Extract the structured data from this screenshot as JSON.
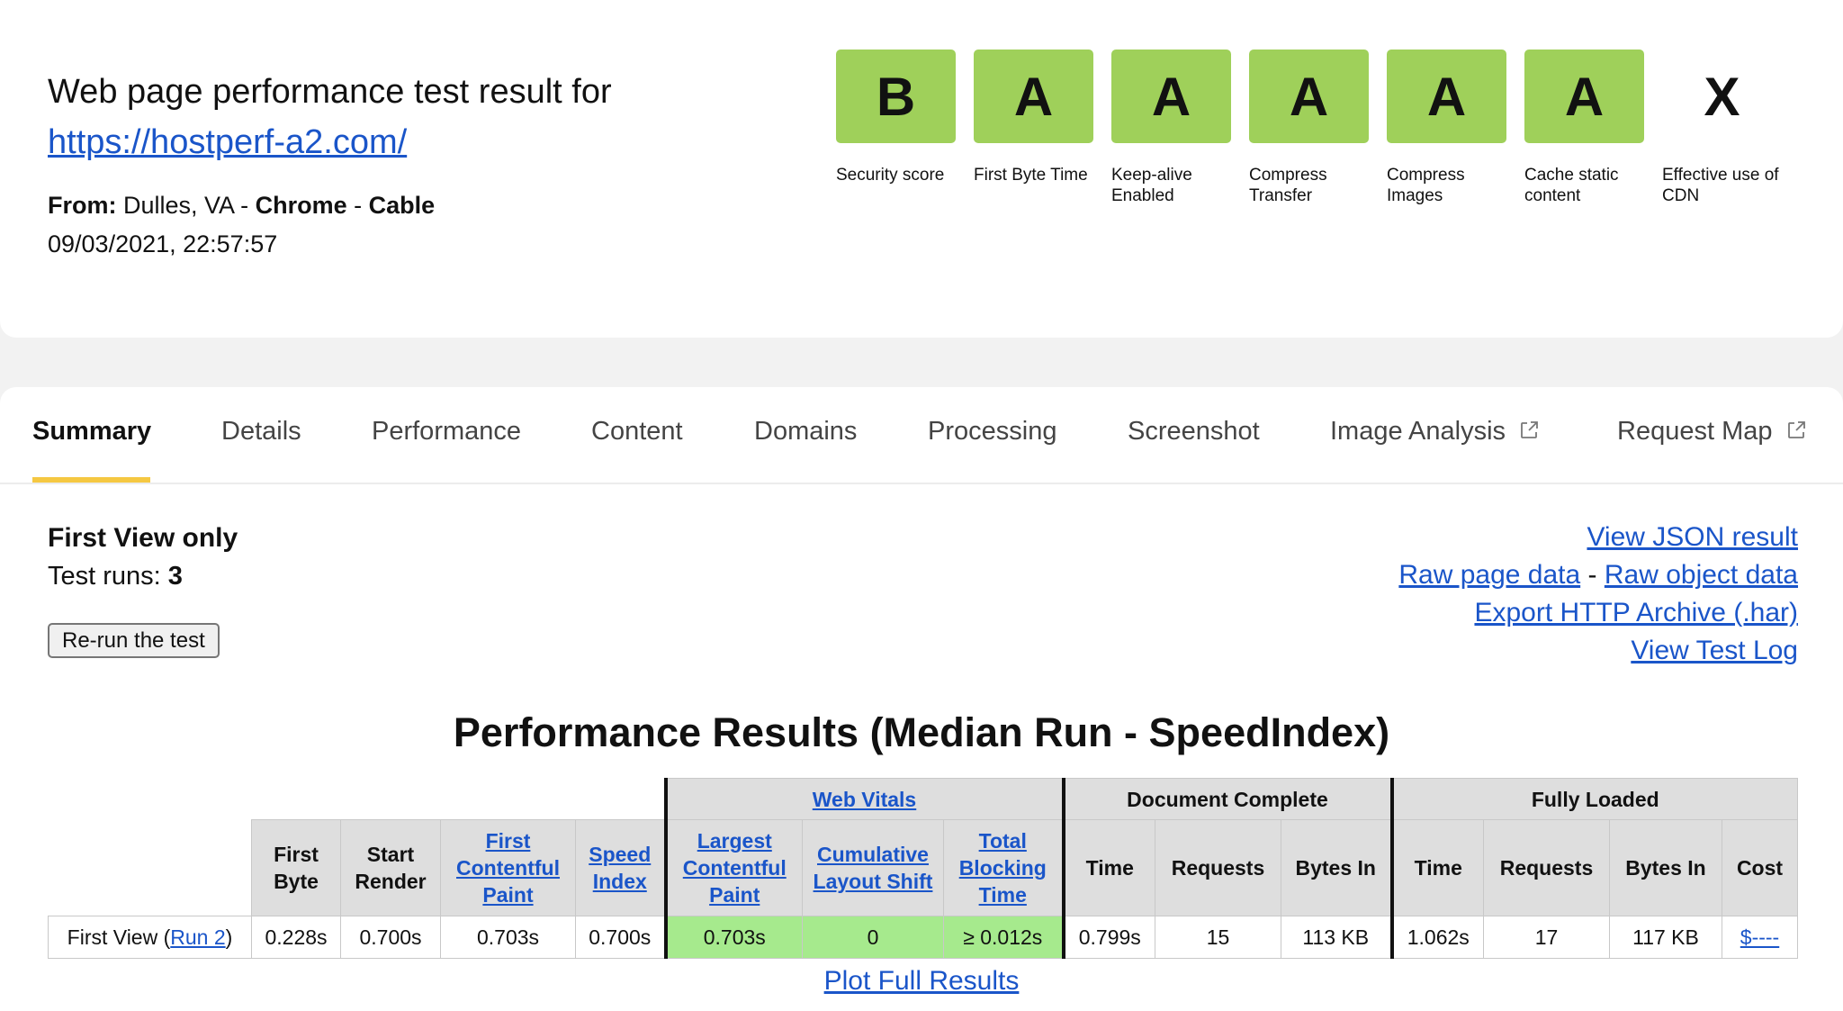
{
  "header": {
    "title": "Web page performance test result for",
    "url": "https://hostperf-a2.com/",
    "from_label": "From:",
    "location": "Dulles, VA",
    "browser": "Chrome",
    "connection": "Cable",
    "dash": "-",
    "datetime": "09/03/2021, 22:57:57"
  },
  "grades": [
    {
      "grade": "B",
      "label": "Security score",
      "color": "#9fd05a"
    },
    {
      "grade": "A",
      "label": "First Byte Time",
      "color": "#9fd05a"
    },
    {
      "grade": "A",
      "label": "Keep-alive Enabled",
      "color": "#9fd05a"
    },
    {
      "grade": "A",
      "label": "Compress Transfer",
      "color": "#9fd05a"
    },
    {
      "grade": "A",
      "label": "Compress Images",
      "color": "#9fd05a"
    },
    {
      "grade": "A",
      "label": "Cache static content",
      "color": "#9fd05a"
    },
    {
      "grade": "X",
      "label": "Effective use of CDN",
      "color": "none"
    }
  ],
  "tabs": [
    {
      "label": "Summary",
      "active": true
    },
    {
      "label": "Details"
    },
    {
      "label": "Performance"
    },
    {
      "label": "Content"
    },
    {
      "label": "Domains"
    },
    {
      "label": "Processing"
    },
    {
      "label": "Screenshot"
    },
    {
      "label": "Image Analysis",
      "icon": "external-link-icon"
    },
    {
      "label": "Request Map",
      "icon": "external-link-icon"
    }
  ],
  "summary": {
    "view_title": "First View only",
    "runs_label": "Test runs:",
    "runs_value": "3",
    "rerun_button": "Re-run the test"
  },
  "links": {
    "json": "View JSON result",
    "raw_page": "Raw page data",
    "separator": "-",
    "raw_object": "Raw object data",
    "har": "Export HTTP Archive (.har)",
    "log": "View Test Log"
  },
  "results": {
    "title": "Performance Results (Median Run - SpeedIndex)",
    "groups": {
      "web_vitals": "Web Vitals",
      "document_complete": "Document Complete",
      "fully_loaded": "Fully Loaded"
    },
    "columns": {
      "first_byte": "First Byte",
      "start_render": "Start Render",
      "fcp": "First Contentful Paint",
      "speed_index": "Speed Index",
      "lcp": "Largest Contentful Paint",
      "cls": "Cumulative Layout Shift",
      "tbt": "Total Blocking Time",
      "dc_time": "Time",
      "dc_requests": "Requests",
      "dc_bytes": "Bytes In",
      "fl_time": "Time",
      "fl_requests": "Requests",
      "fl_bytes": "Bytes In",
      "cost": "Cost"
    },
    "row": {
      "label_prefix": "First View (",
      "run_link": "Run 2",
      "label_suffix": ")",
      "first_byte": "0.228s",
      "start_render": "0.700s",
      "fcp": "0.703s",
      "speed_index": "0.700s",
      "lcp": "0.703s",
      "cls": "0",
      "tbt": "≥ 0.012s",
      "dc_time": "0.799s",
      "dc_requests": "15",
      "dc_bytes": "113 KB",
      "fl_time": "1.062s",
      "fl_requests": "17",
      "fl_bytes": "117 KB",
      "cost": "$----"
    },
    "plot_link": "Plot Full Results"
  }
}
